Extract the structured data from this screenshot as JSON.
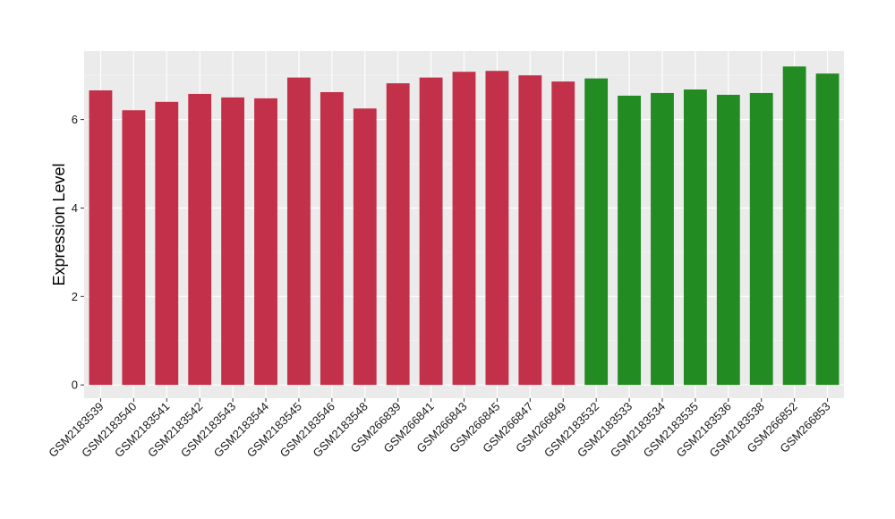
{
  "chart_data": {
    "type": "bar",
    "title": "",
    "xlabel": "",
    "ylabel": "Expression Level",
    "ylim": [
      -0.3,
      7.55
    ],
    "yticks": [
      0,
      2,
      4,
      6
    ],
    "grid": true,
    "legend": "none",
    "categories": [
      "GSM2183539",
      "GSM2183540",
      "GSM2183541",
      "GSM2183542",
      "GSM2183543",
      "GSM2183544",
      "GSM2183545",
      "GSM2183546",
      "GSM2183548",
      "GSM266839",
      "GSM266841",
      "GSM266843",
      "GSM266845",
      "GSM266847",
      "GSM266849",
      "GSM2183532",
      "GSM2183533",
      "GSM2183534",
      "GSM2183535",
      "GSM2183536",
      "GSM2183538",
      "GSM266852",
      "GSM266853"
    ],
    "values": [
      6.66,
      6.21,
      6.4,
      6.58,
      6.5,
      6.48,
      6.95,
      6.62,
      6.25,
      6.82,
      6.95,
      7.08,
      7.1,
      7.0,
      6.86,
      6.93,
      6.54,
      6.6,
      6.68,
      6.56,
      6.6,
      7.2,
      7.04
    ],
    "groups": [
      "red",
      "red",
      "red",
      "red",
      "red",
      "red",
      "red",
      "red",
      "red",
      "red",
      "red",
      "red",
      "red",
      "red",
      "red",
      "green",
      "green",
      "green",
      "green",
      "green",
      "green",
      "green",
      "green"
    ],
    "colors": {
      "red": "#C3304A",
      "green": "#228B22"
    }
  }
}
